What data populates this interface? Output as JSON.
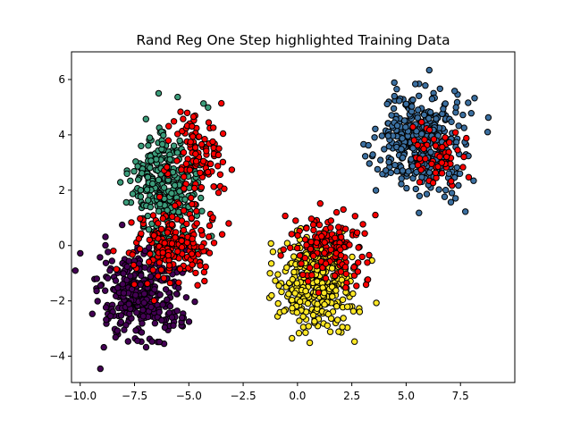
{
  "chart_data": {
    "type": "scatter",
    "title": "Rand Reg One Step highlighted Training Data",
    "xlabel": "",
    "ylabel": "",
    "xlim": [
      -10.4,
      10.0
    ],
    "ylim": [
      -4.95,
      7.0
    ],
    "xticks": [
      -10.0,
      -7.5,
      -5.0,
      -2.5,
      0.0,
      2.5,
      5.0,
      7.5
    ],
    "xtick_labels": [
      "−10.0",
      "−7.5",
      "−5.0",
      "−2.5",
      "0.0",
      "2.5",
      "5.0",
      "7.5"
    ],
    "yticks": [
      -4,
      -2,
      0,
      2,
      4,
      6
    ],
    "ytick_labels": [
      "−4",
      "−2",
      "0",
      "2",
      "4",
      "6"
    ],
    "grid": false,
    "clusters": [
      {
        "color": "#440154",
        "center": [
          -7.2,
          -1.9
        ],
        "spread": [
          0.95,
          0.85
        ],
        "count": 330
      },
      {
        "color": "#3b9c7a",
        "center": [
          -6.1,
          2.2
        ],
        "spread": [
          0.8,
          1.0
        ],
        "count": 300
      },
      {
        "color": "#3b6fa0",
        "center": [
          5.8,
          3.8
        ],
        "spread": [
          0.95,
          0.9
        ],
        "count": 380
      },
      {
        "color": "#fde725",
        "center": [
          0.8,
          -1.3
        ],
        "spread": [
          0.85,
          0.85
        ],
        "count": 360
      },
      {
        "color": "#ff0000",
        "center": [
          -5.7,
          0.0
        ],
        "spread": [
          0.9,
          0.75
        ],
        "count": 200
      },
      {
        "color": "#ff0000",
        "center": [
          -4.6,
          3.3
        ],
        "spread": [
          0.7,
          0.9
        ],
        "count": 110
      },
      {
        "color": "#ff0000",
        "center": [
          1.6,
          0.0
        ],
        "spread": [
          0.8,
          0.6
        ],
        "count": 150
      },
      {
        "color": "#ff0000",
        "center": [
          6.2,
          3.3
        ],
        "spread": [
          0.7,
          0.5
        ],
        "count": 55
      }
    ]
  }
}
